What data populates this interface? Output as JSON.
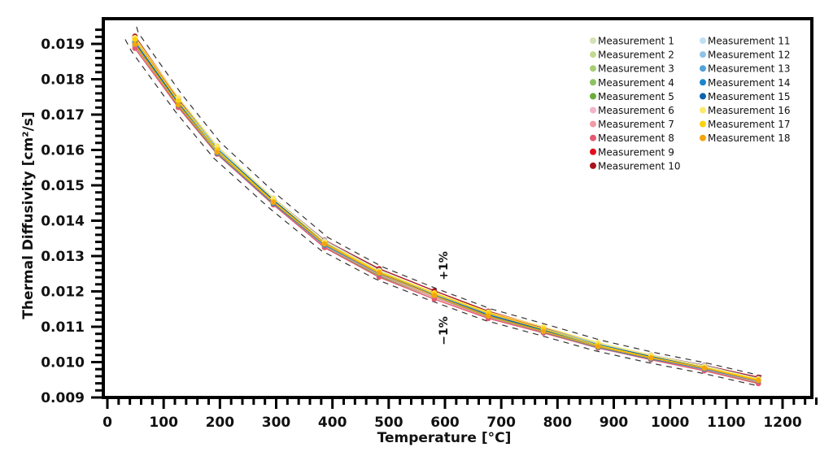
{
  "chart_data": {
    "type": "line",
    "title": "",
    "xlabel": "Temperature [°C]",
    "ylabel": "Thermal Diffusivity [cm²/s]",
    "xlim": [
      0,
      1260
    ],
    "ylim": [
      0.009,
      0.0194
    ],
    "xticks": [
      "0",
      "100",
      "200",
      "300",
      "400",
      "500",
      "600",
      "700",
      "800",
      "900",
      "1000",
      "1100",
      "1200"
    ],
    "yticks": [
      "0.009",
      "0.010",
      "0.011",
      "0.012",
      "0.013",
      "0.014",
      "0.015",
      "0.016",
      "0.017",
      "0.018",
      "0.019"
    ],
    "x": [
      49,
      126,
      195,
      295,
      386,
      483,
      581,
      677,
      775,
      872,
      966,
      1061,
      1157
    ],
    "mean": [
      0.01905,
      0.01734,
      0.01599,
      0.01454,
      0.01334,
      0.01252,
      0.0119,
      0.01134,
      0.01091,
      0.01047,
      0.01013,
      0.00983,
      0.00948
    ],
    "annotations": [
      {
        "text": "+1%",
        "anchor": "upper-band"
      },
      {
        "text": "−1%",
        "anchor": "lower-band"
      }
    ],
    "legend_position": "top-right",
    "series": [
      {
        "name": "Measurement 1",
        "color": "#d4e3b5",
        "offset": 0.0
      },
      {
        "name": "Measurement 2",
        "color": "#c2da8f",
        "offset": -0.002
      },
      {
        "name": "Measurement 3",
        "color": "#a8cd72",
        "offset": -0.003
      },
      {
        "name": "Measurement 4",
        "color": "#8cc260",
        "offset": -0.004
      },
      {
        "name": "Measurement 5",
        "color": "#6aad3a",
        "offset": -0.005
      },
      {
        "name": "Measurement 6",
        "color": "#f4b3cc",
        "offset": 0.003
      },
      {
        "name": "Measurement 7",
        "color": "#f09aa6",
        "offset": -0.006
      },
      {
        "name": "Measurement 8",
        "color": "#e45a72",
        "offset": -0.008
      },
      {
        "name": "Measurement 9",
        "color": "#e0101f",
        "offset": 0.004
      },
      {
        "name": "Measurement 10",
        "color": "#a8141c",
        "offset": 0.008
      },
      {
        "name": "Measurement 11",
        "color": "#bfe1f6",
        "offset": 0.005
      },
      {
        "name": "Measurement 12",
        "color": "#8cc3e8",
        "offset": 0.002
      },
      {
        "name": "Measurement 13",
        "color": "#4fa3da",
        "offset": -0.001
      },
      {
        "name": "Measurement 14",
        "color": "#1a86cc",
        "offset": -0.003
      },
      {
        "name": "Measurement 15",
        "color": "#0d63ad",
        "offset": 0.001
      },
      {
        "name": "Measurement 16",
        "color": "#fbe96a",
        "offset": 0.006
      },
      {
        "name": "Measurement 17",
        "color": "#fcd20a",
        "offset": 0.002
      },
      {
        "name": "Measurement 18",
        "color": "#f5a40c",
        "offset": -0.002
      }
    ]
  }
}
